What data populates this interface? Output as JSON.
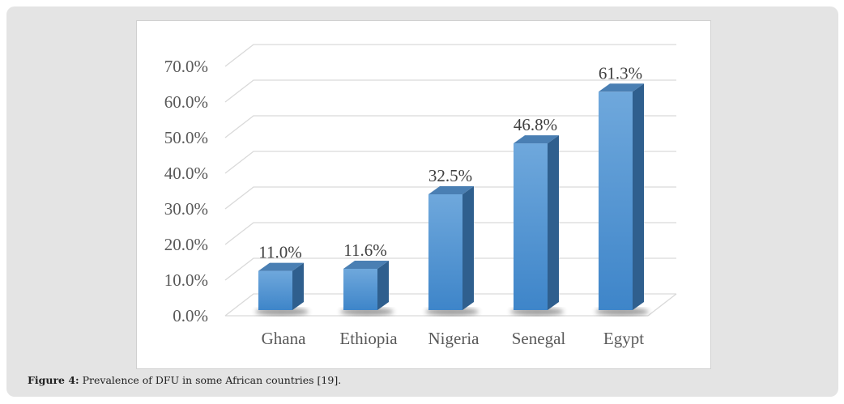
{
  "chart_data": {
    "type": "bar",
    "style": "3d-column",
    "categories": [
      "Ghana",
      "Ethiopia",
      "Nigeria",
      "Senegal",
      "Egypt"
    ],
    "values": [
      11.0,
      11.6,
      32.5,
      46.8,
      61.3
    ],
    "data_labels": [
      "11.0%",
      "11.6%",
      "32.5%",
      "46.8%",
      "61.3%"
    ],
    "yticks": [
      "0.0%",
      "10.0%",
      "20.0%",
      "30.0%",
      "40.0%",
      "50.0%",
      "60.0%",
      "70.0%"
    ],
    "ylim": [
      0,
      70
    ],
    "grid": true,
    "title": "",
    "xlabel": "",
    "ylabel": "",
    "bar_color": "#5b9bd5"
  },
  "caption": {
    "label": "Figure 4:",
    "text": " Prevalence of DFU in some African countries [19]."
  }
}
